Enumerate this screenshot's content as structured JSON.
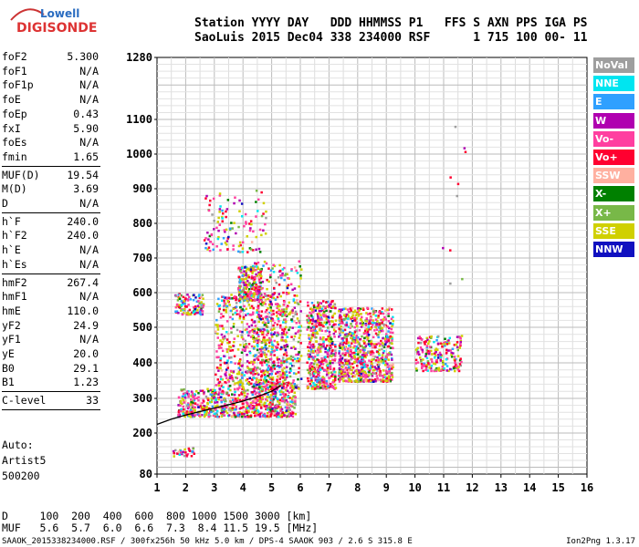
{
  "logo": {
    "top": "Lowell",
    "bottom": "DIGISONDE"
  },
  "header": {
    "line1": "Station YYYY DAY   DDD HHMMSS P1   FFS S AXN PPS IGA PS",
    "line2": "SaoLuis 2015 Dec04 338 234000 RSF      1 715 100 00- 11"
  },
  "params": [
    {
      "label": "foF2",
      "value": "5.300"
    },
    {
      "label": "foF1",
      "value": "N/A"
    },
    {
      "label": "foF1p",
      "value": "N/A"
    },
    {
      "label": "foE",
      "value": "N/A"
    },
    {
      "label": "foEp",
      "value": "0.43"
    },
    {
      "label": "fxI",
      "value": "5.90"
    },
    {
      "label": "foEs",
      "value": "N/A"
    },
    {
      "label": "fmin",
      "value": "1.65"
    },
    {
      "label": "MUF(D)",
      "value": "19.54"
    },
    {
      "label": "M(D)",
      "value": "3.69"
    },
    {
      "label": "D",
      "value": "N/A"
    },
    {
      "label": "h`F",
      "value": "240.0"
    },
    {
      "label": "h`F2",
      "value": "240.0"
    },
    {
      "label": "h`E",
      "value": "N/A"
    },
    {
      "label": "h`Es",
      "value": "N/A"
    },
    {
      "label": "hmF2",
      "value": "267.4"
    },
    {
      "label": "hmF1",
      "value": "N/A"
    },
    {
      "label": "hmE",
      "value": "110.0"
    },
    {
      "label": "yF2",
      "value": "24.9"
    },
    {
      "label": "yF1",
      "value": "N/A"
    },
    {
      "label": "yE",
      "value": "20.0"
    },
    {
      "label": "B0",
      "value": "29.1"
    },
    {
      "label": "B1",
      "value": "1.23"
    },
    {
      "label": "C-level",
      "value": "33"
    }
  ],
  "auto": {
    "line1": "Auto:",
    "line2": "Artist5",
    "line3": "500200"
  },
  "legend": [
    {
      "label": "NoVal",
      "color": "#9e9e9e"
    },
    {
      "label": "NNE",
      "color": "#00e5f0"
    },
    {
      "label": "E",
      "color": "#2fa0ff"
    },
    {
      "label": "W",
      "color": "#b000b0"
    },
    {
      "label": "Vo-",
      "color": "#ff3fa0"
    },
    {
      "label": "Vo+",
      "color": "#ff0030"
    },
    {
      "label": "SSW",
      "color": "#ffb0a0"
    },
    {
      "label": "X-",
      "color": "#008000"
    },
    {
      "label": "X+",
      "color": "#78b848"
    },
    {
      "label": "SSE",
      "color": "#d0d000"
    },
    {
      "label": "NNW",
      "color": "#1010c0"
    }
  ],
  "muf_table": {
    "d_line": "D     100  200  400  600  800 1000 1500 3000 [km]",
    "muf_line": "MUF   5.6  5.7  6.0  6.6  7.3  8.4 11.5 19.5 [MHz]"
  },
  "footer": {
    "left": "SAAOK_2015338234000.RSF / 300fx256h 50 kHz 5.0 km / DPS-4 SAAOK 903 / 2.6 S 315.8 E",
    "right": "Ion2Png 1.3.17"
  },
  "chart_data": {
    "type": "scatter",
    "xlim": [
      1,
      16
    ],
    "ylim": [
      80,
      1280
    ],
    "xticks": [
      "1",
      "2",
      "3",
      "4",
      "5",
      "6",
      "7",
      "8",
      "9",
      "10",
      "11",
      "12",
      "13",
      "14",
      "15",
      "16"
    ],
    "yticks": [
      "80",
      "200",
      "300",
      "400",
      "500",
      "600",
      "700",
      "800",
      "900",
      "1000",
      "1100",
      "1280"
    ],
    "grid": true,
    "trace_profile": {
      "name": "",
      "x": [
        1.0,
        1.5,
        2.0,
        2.5,
        3.0,
        3.5,
        4.0,
        4.5,
        5.0,
        5.3
      ],
      "y": [
        225,
        240,
        252,
        262,
        272,
        282,
        292,
        305,
        320,
        335
      ]
    },
    "clusters": [
      {
        "x": [
          1.7,
          5.8
        ],
        "y": [
          250,
          330
        ],
        "n": 700
      },
      {
        "x": [
          3.0,
          5.5
        ],
        "y": [
          330,
          600
        ],
        "n": 600
      },
      {
        "x": [
          4.3,
          6.0
        ],
        "y": [
          330,
          700
        ],
        "n": 450
      },
      {
        "x": [
          3.8,
          4.6
        ],
        "y": [
          580,
          680
        ],
        "n": 220
      },
      {
        "x": [
          1.6,
          2.6
        ],
        "y": [
          540,
          600
        ],
        "n": 120
      },
      {
        "x": [
          2.6,
          4.8
        ],
        "y": [
          720,
          900
        ],
        "n": 120
      },
      {
        "x": [
          6.2,
          7.2
        ],
        "y": [
          330,
          580
        ],
        "n": 500
      },
      {
        "x": [
          7.3,
          9.2
        ],
        "y": [
          350,
          560
        ],
        "n": 800
      },
      {
        "x": [
          10.0,
          11.6
        ],
        "y": [
          380,
          480
        ],
        "n": 200
      },
      {
        "x": [
          1.5,
          2.3
        ],
        "y": [
          135,
          160
        ],
        "n": 30
      },
      {
        "x": [
          10.9,
          11.8
        ],
        "y": [
          600,
          1110
        ],
        "n": 10
      }
    ]
  }
}
